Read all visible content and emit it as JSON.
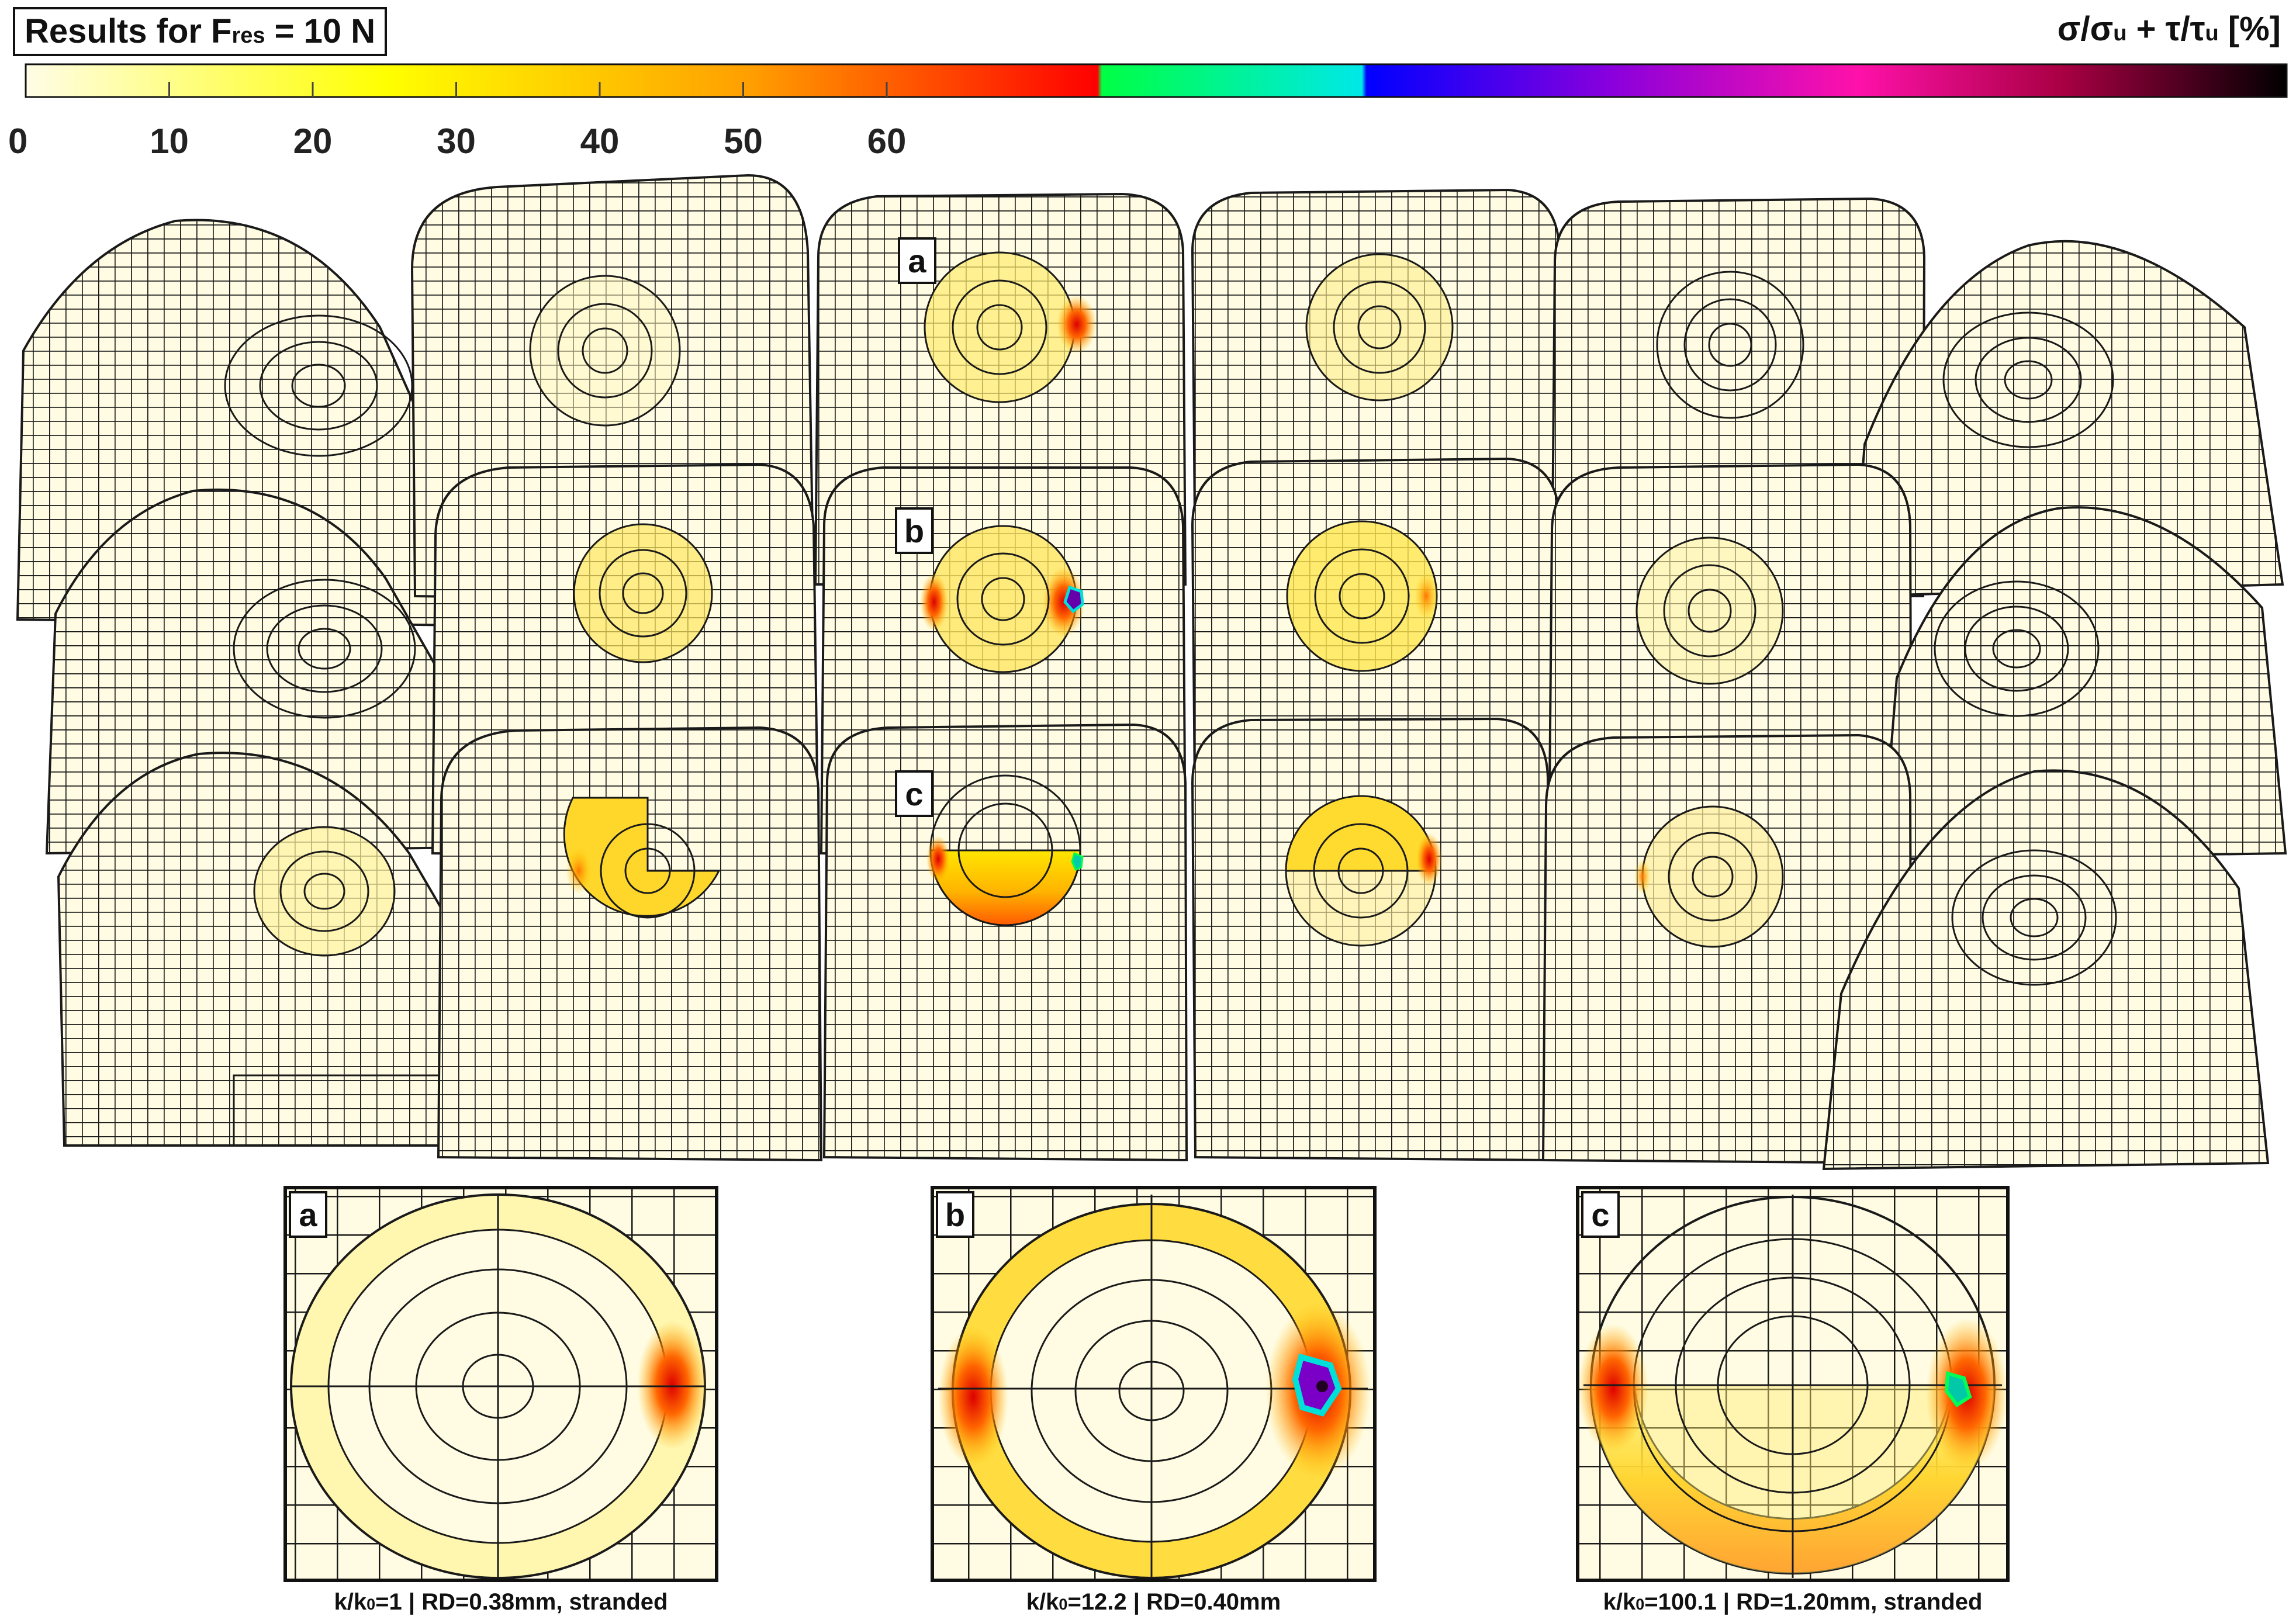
{
  "title": {
    "prefix": "Results for F",
    "sub": "res",
    "suffix": " = 10 N"
  },
  "legend": {
    "label_parts": [
      "σ/σ",
      "u",
      " + τ/τ",
      "u",
      " [%]"
    ],
    "ticks": [
      "0",
      "10",
      "20",
      "30",
      "40",
      "50",
      "60"
    ],
    "colors": {
      "0": "#fffde6",
      "10": "#ffff00",
      "20": "#ff9f00",
      "29.7": "#ff0000",
      "30": "#00ff44",
      "37": "#00e8e8",
      "37.1": "#0000ff",
      "44": "#8800dd",
      "51": "#ff11aa",
      "55": "#aa0044",
      "62.5": "#000000"
    }
  },
  "labels": [
    "a",
    "b",
    "c"
  ],
  "detail_panels": [
    {
      "label": "a",
      "caption_parts": [
        "k/k",
        "0",
        "=1 | RD=0.38mm, stranded"
      ]
    },
    {
      "label": "b",
      "caption_parts": [
        "k/k",
        "0",
        "=12.2 | RD=0.40mm"
      ]
    },
    {
      "label": "c",
      "caption_parts": [
        "k/k",
        "0",
        "=100.1 | RD=1.20mm, stranded"
      ]
    }
  ],
  "style": {
    "mesh_fill": "#fffce3",
    "mesh_line": "#1a1a1a"
  }
}
